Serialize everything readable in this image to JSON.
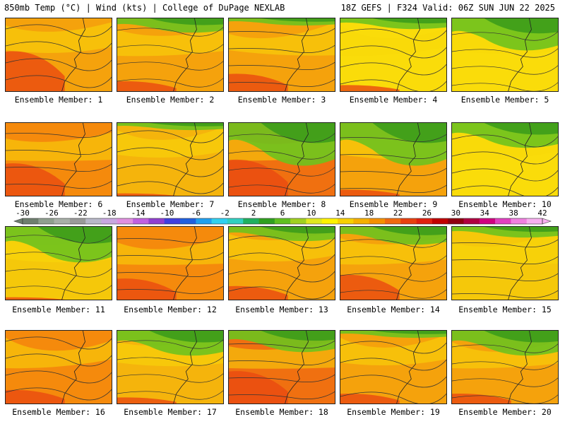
{
  "header": {
    "left": "850mb Temp (°C) | Wind (kts) | College of DuPage NEXLAB",
    "right": "18Z GEFS | F324 Valid: 06Z SUN JUN 22 2025"
  },
  "members": [
    {
      "label": "Ensemble Member: 1",
      "base": "#f5a20c",
      "green": 0.0,
      "red": 0.55
    },
    {
      "label": "Ensemble Member: 2",
      "base": "#f5a20c",
      "green": 0.2,
      "red": 0.15
    },
    {
      "label": "Ensemble Member: 3",
      "base": "#f5a20c",
      "green": 0.1,
      "red": 0.25
    },
    {
      "label": "Ensemble Member: 4",
      "base": "#fadc0a",
      "green": 0.15,
      "red": 0.1
    },
    {
      "label": "Ensemble Member: 5",
      "base": "#fadc0a",
      "green": 0.45,
      "red": 0.0
    },
    {
      "label": "Ensemble Member: 6",
      "base": "#f58a0c",
      "green": 0.0,
      "red": 0.45
    },
    {
      "label": "Ensemble Member: 7",
      "base": "#f5b40c",
      "green": 0.1,
      "red": 0.05
    },
    {
      "label": "Ensemble Member: 8",
      "base": "#f07010",
      "green": 0.6,
      "red": 0.5
    },
    {
      "label": "Ensemble Member: 9",
      "base": "#f5a20c",
      "green": 0.6,
      "red": 0.1
    },
    {
      "label": "Ensemble Member: 10",
      "base": "#fadc0a",
      "green": 0.35,
      "red": 0.0
    },
    {
      "label": "Ensemble Member: 11",
      "base": "#f5c80a",
      "green": 0.5,
      "red": 0.05
    },
    {
      "label": "Ensemble Member: 12",
      "base": "#f58a0c",
      "green": 0.0,
      "red": 0.3
    },
    {
      "label": "Ensemble Member: 13",
      "base": "#f5a20c",
      "green": 0.2,
      "red": 0.2
    },
    {
      "label": "Ensemble Member: 14",
      "base": "#f5a20c",
      "green": 0.25,
      "red": 0.35
    },
    {
      "label": "Ensemble Member: 15",
      "base": "#f5c80a",
      "green": 0.15,
      "red": 0.0
    },
    {
      "label": "Ensemble Member: 16",
      "base": "#f58a0c",
      "green": 0.0,
      "red": 0.2
    },
    {
      "label": "Ensemble Member: 17",
      "base": "#f5b40c",
      "green": 0.35,
      "red": 0.1
    },
    {
      "label": "Ensemble Member: 18",
      "base": "#f07010",
      "green": 0.3,
      "red": 0.45
    },
    {
      "label": "Ensemble Member: 19",
      "base": "#f5a20c",
      "green": 0.1,
      "red": 0.15
    },
    {
      "label": "Ensemble Member: 20",
      "base": "#f5a20c",
      "green": 0.35,
      "red": 0.15
    }
  ],
  "colorbar": {
    "labels": [
      "-30",
      "-26",
      "-22",
      "-18",
      "-14",
      "-10",
      "-6",
      "-2",
      "2",
      "6",
      "10",
      "14",
      "18",
      "22",
      "26",
      "30",
      "34",
      "38",
      "42"
    ],
    "colors": [
      "#6f7f6f",
      "#8f9f8f",
      "#a8b0a8",
      "#9a9a9a",
      "#b8b8c8",
      "#c8a8e0",
      "#e090e0",
      "#c060e0",
      "#9040d0",
      "#4040e0",
      "#2060e0",
      "#20a0f0",
      "#30d0f0",
      "#30d0c0",
      "#20b060",
      "#30a020",
      "#60c020",
      "#a0d020",
      "#e0e820",
      "#fff200",
      "#f8d000",
      "#f5b000",
      "#f59000",
      "#f06a10",
      "#e84010",
      "#e02010",
      "#c00000",
      "#900010",
      "#b00040",
      "#d00080",
      "#e040c0",
      "#f080e0",
      "#f8b0f0"
    ]
  }
}
